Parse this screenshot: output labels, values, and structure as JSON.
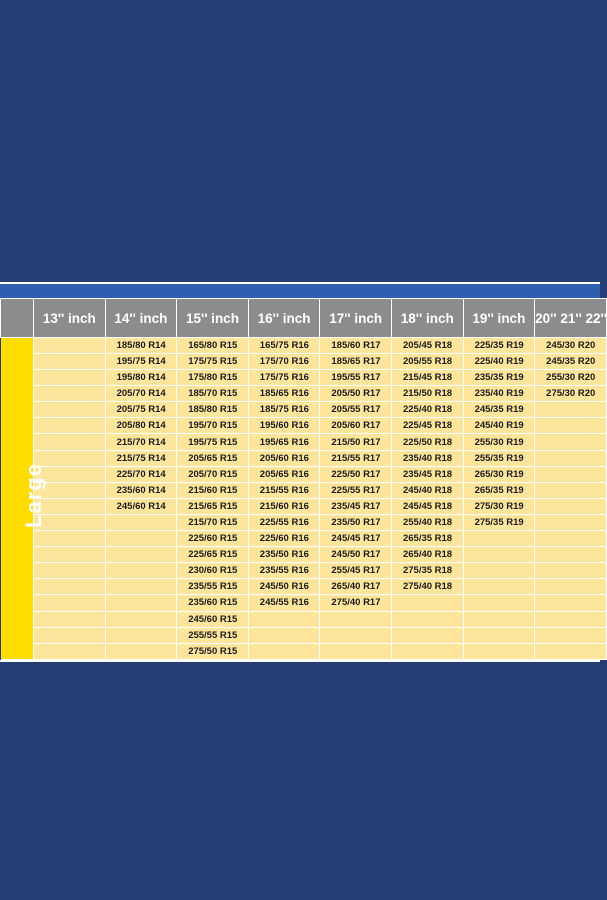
{
  "category_label": "Large",
  "headers": [
    "13'' inch",
    "14'' inch",
    "15'' inch",
    "16'' inch",
    "17'' inch",
    "18'' inch",
    "19'' inch",
    "20'' 21'' 22''"
  ],
  "rows": [
    [
      "",
      "185/80 R14",
      "165/80 R15",
      "165/75 R16",
      "185/60 R17",
      "205/45 R18",
      "225/35 R19",
      "245/30 R20"
    ],
    [
      "",
      "195/75 R14",
      "175/75 R15",
      "175/70 R16",
      "185/65 R17",
      "205/55 R18",
      "225/40 R19",
      "245/35 R20"
    ],
    [
      "",
      "195/80 R14",
      "175/80 R15",
      "175/75 R16",
      "195/55 R17",
      "215/45 R18",
      "235/35 R19",
      "255/30 R20"
    ],
    [
      "",
      "205/70 R14",
      "185/70 R15",
      "185/65 R16",
      "205/50 R17",
      "215/50 R18",
      "235/40 R19",
      "275/30 R20"
    ],
    [
      "",
      "205/75 R14",
      "185/80 R15",
      "185/75 R16",
      "205/55 R17",
      "225/40 R18",
      "245/35 R19",
      ""
    ],
    [
      "",
      "205/80 R14",
      "195/70 R15",
      "195/60 R16",
      "205/60 R17",
      "225/45 R18",
      "245/40 R19",
      ""
    ],
    [
      "",
      "215/70 R14",
      "195/75 R15",
      "195/65 R16",
      "215/50 R17",
      "225/50 R18",
      "255/30 R19",
      ""
    ],
    [
      "",
      "215/75 R14",
      "205/65 R15",
      "205/60 R16",
      "215/55 R17",
      "235/40 R18",
      "255/35 R19",
      ""
    ],
    [
      "",
      "225/70 R14",
      "205/70 R15",
      "205/65 R16",
      "225/50 R17",
      "235/45 R18",
      "265/30 R19",
      ""
    ],
    [
      "",
      "235/60 R14",
      "215/60 R15",
      "215/55 R16",
      "225/55 R17",
      "245/40 R18",
      "265/35 R19",
      ""
    ],
    [
      "",
      "245/60 R14",
      "215/65 R15",
      "215/60 R16",
      "235/45 R17",
      "245/45 R18",
      "275/30 R19",
      ""
    ],
    [
      "",
      "",
      "215/70 R15",
      "225/55 R16",
      "235/50 R17",
      "255/40 R18",
      "275/35 R19",
      ""
    ],
    [
      "",
      "",
      "225/60 R15",
      "225/60 R16",
      "245/45 R17",
      "265/35 R18",
      "",
      ""
    ],
    [
      "",
      "",
      "225/65 R15",
      "235/50 R16",
      "245/50 R17",
      "265/40 R18",
      "",
      ""
    ],
    [
      "",
      "",
      "230/60 R15",
      "235/55 R16",
      "255/45 R17",
      "275/35 R18",
      "",
      ""
    ],
    [
      "",
      "",
      "235/55 R15",
      "245/50 R16",
      "265/40 R17",
      "275/40 R18",
      "",
      ""
    ],
    [
      "",
      "",
      "235/60 R15",
      "245/55 R16",
      "275/40 R17",
      "",
      "",
      ""
    ],
    [
      "",
      "",
      "245/60 R15",
      "",
      "",
      "",
      "",
      ""
    ],
    [
      "",
      "",
      "255/55 R15",
      "",
      "",
      "",
      "",
      ""
    ],
    [
      "",
      "",
      "275/50 R15",
      "",
      "",
      "",
      "",
      ""
    ]
  ]
}
